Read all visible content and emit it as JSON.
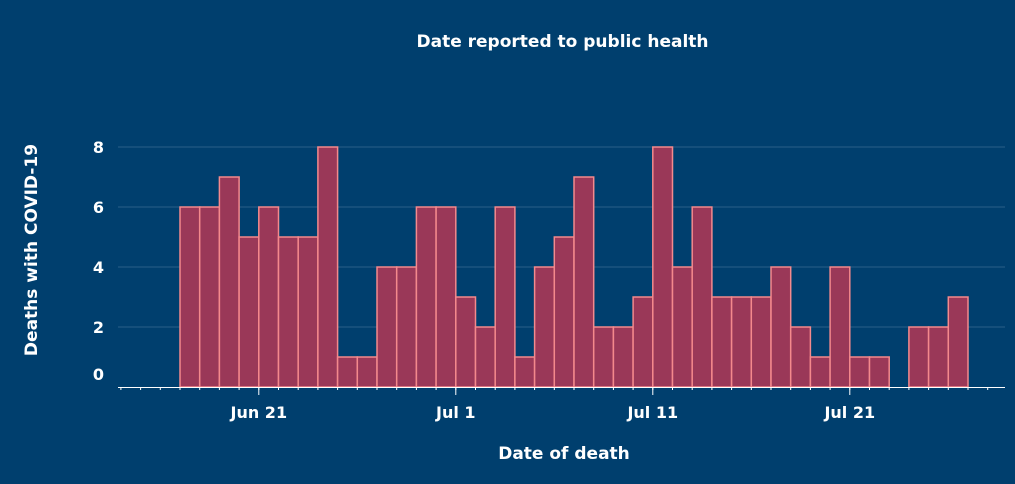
{
  "chart_data": {
    "type": "bar",
    "title": "Date reported to public health",
    "xlabel": "Date of death",
    "ylabel": "Deaths with COVID-19",
    "ylim": [
      0,
      8.5
    ],
    "yticks": [
      "0",
      "2",
      "4",
      "6",
      "8"
    ],
    "xtick_labels": [
      {
        "label": "Jun 21",
        "day_index": 4
      },
      {
        "label": "Jul 1",
        "day_index": 14
      },
      {
        "label": "Jul 11",
        "day_index": 24
      },
      {
        "label": "Jul 21",
        "day_index": 34
      }
    ],
    "grid": true,
    "categories": [
      "Jun 17",
      "Jun 18",
      "Jun 19",
      "Jun 20",
      "Jun 21",
      "Jun 22",
      "Jun 23",
      "Jun 24",
      "Jun 25",
      "Jun 26",
      "Jun 27",
      "Jun 28",
      "Jun 29",
      "Jun 30",
      "Jul 1",
      "Jul 2",
      "Jul 3",
      "Jul 4",
      "Jul 5",
      "Jul 6",
      "Jul 7",
      "Jul 8",
      "Jul 9",
      "Jul 10",
      "Jul 11",
      "Jul 12",
      "Jul 13",
      "Jul 14",
      "Jul 15",
      "Jul 16",
      "Jul 17",
      "Jul 18",
      "Jul 19",
      "Jul 20",
      "Jul 21",
      "Jul 22",
      "Jul 23",
      "Jul 24",
      "Jul 25",
      "Jul 26"
    ],
    "values": [
      6,
      6,
      7,
      5,
      6,
      5,
      5,
      8,
      1,
      1,
      4,
      4,
      6,
      6,
      3,
      2,
      6,
      1,
      4,
      5,
      7,
      2,
      2,
      3,
      8,
      4,
      6,
      3,
      3,
      3,
      4,
      2,
      1,
      4,
      1,
      1,
      0,
      2,
      2,
      3
    ],
    "colors": {
      "bar": "#9a3858",
      "bar_edge": "#f4898c",
      "grid": "#2a5f88",
      "axis": "#ffffff"
    }
  }
}
